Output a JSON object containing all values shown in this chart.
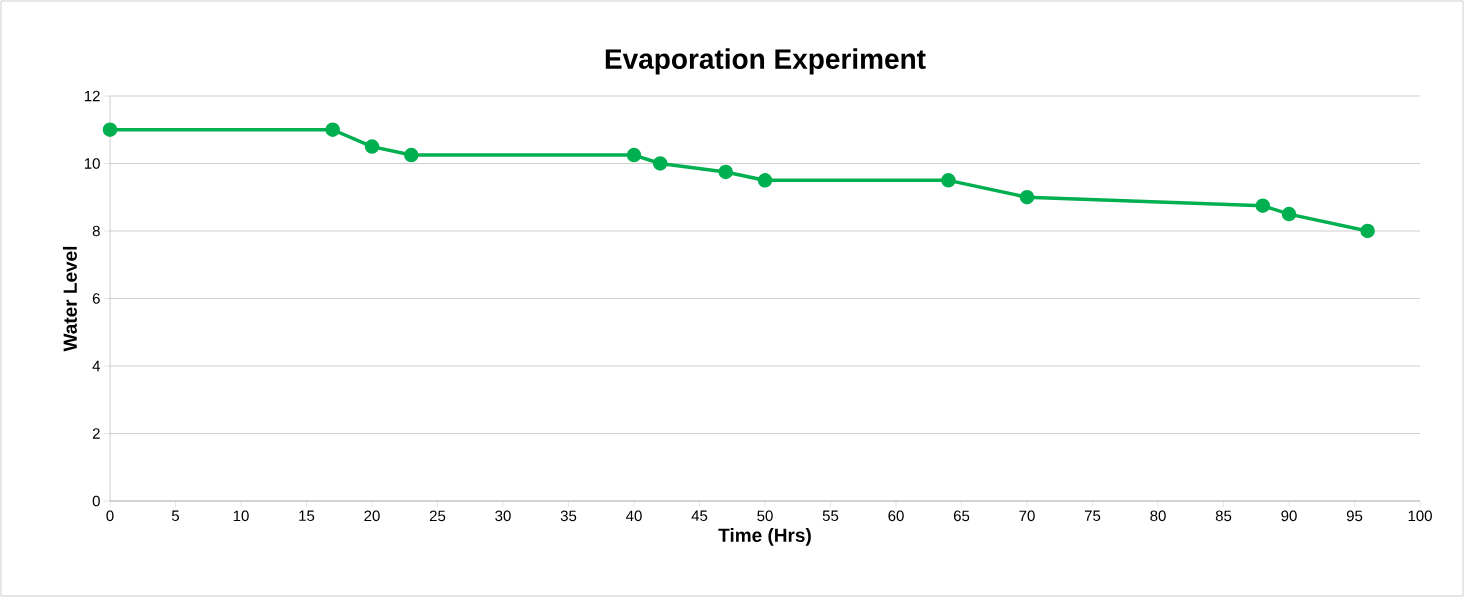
{
  "chart_data": {
    "type": "line",
    "title": "Evaporation Experiment",
    "xlabel": "Time (Hrs)",
    "ylabel": "Water Level",
    "x": [
      0,
      17,
      20,
      23,
      40,
      42,
      47,
      50,
      64,
      70,
      88,
      90,
      96
    ],
    "series": [
      {
        "color": "#00b050",
        "values": [
          11,
          11,
          10.5,
          10.25,
          10.25,
          10,
          9.75,
          9.5,
          9.5,
          9,
          8.75,
          8.5,
          8
        ]
      }
    ],
    "xlim": [
      0,
      100
    ],
    "ylim": [
      0,
      12
    ],
    "xticks": [
      0,
      5,
      10,
      15,
      20,
      25,
      30,
      35,
      40,
      45,
      50,
      55,
      60,
      65,
      70,
      75,
      80,
      85,
      90,
      95,
      100
    ],
    "yticks": [
      0,
      2,
      4,
      6,
      8,
      10,
      12
    ],
    "grid": "y",
    "marker": "circle",
    "line_style": "solid"
  }
}
